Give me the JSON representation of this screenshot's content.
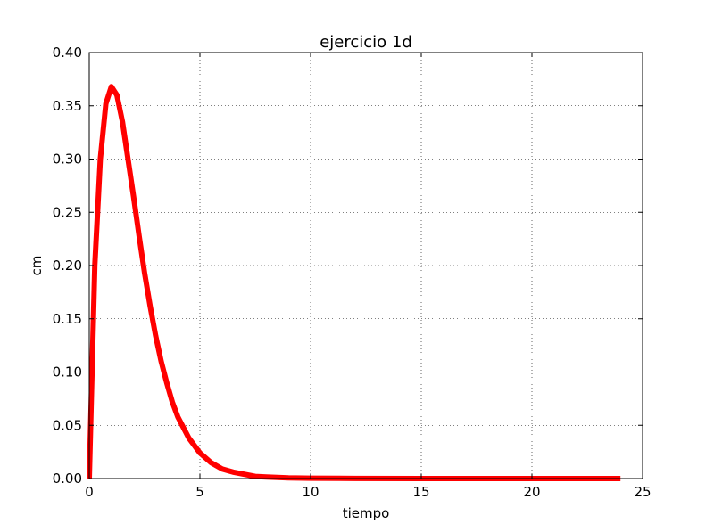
{
  "chart_data": {
    "type": "line",
    "title": "ejercicio 1d",
    "xlabel": "tiempo",
    "ylabel": "cm",
    "xlim": [
      0,
      25
    ],
    "ylim": [
      0,
      0.4
    ],
    "xticks": [
      "0",
      "5",
      "10",
      "15",
      "20",
      "25"
    ],
    "yticks": [
      "0.00",
      "0.05",
      "0.10",
      "0.15",
      "0.20",
      "0.25",
      "0.30",
      "0.35",
      "0.40"
    ],
    "grid": true,
    "series": [
      {
        "color": "#ff0000",
        "x": [
          0,
          0.25,
          0.5,
          0.75,
          1.0,
          1.25,
          1.5,
          1.75,
          2.0,
          2.25,
          2.5,
          2.75,
          3.0,
          3.25,
          3.5,
          3.75,
          4.0,
          4.5,
          5.0,
          5.5,
          6.0,
          6.5,
          7.0,
          7.5,
          8.0,
          9.0,
          10.0,
          12.0,
          15.0,
          20.0,
          24.0
        ],
        "y": [
          0,
          0.2,
          0.3,
          0.352,
          0.368,
          0.36,
          0.335,
          0.3,
          0.265,
          0.228,
          0.193,
          0.162,
          0.134,
          0.11,
          0.09,
          0.072,
          0.058,
          0.038,
          0.024,
          0.015,
          0.009,
          0.006,
          0.004,
          0.002,
          0.0015,
          0.0007,
          0.0003,
          0.0001,
          0,
          0,
          0
        ]
      }
    ]
  }
}
